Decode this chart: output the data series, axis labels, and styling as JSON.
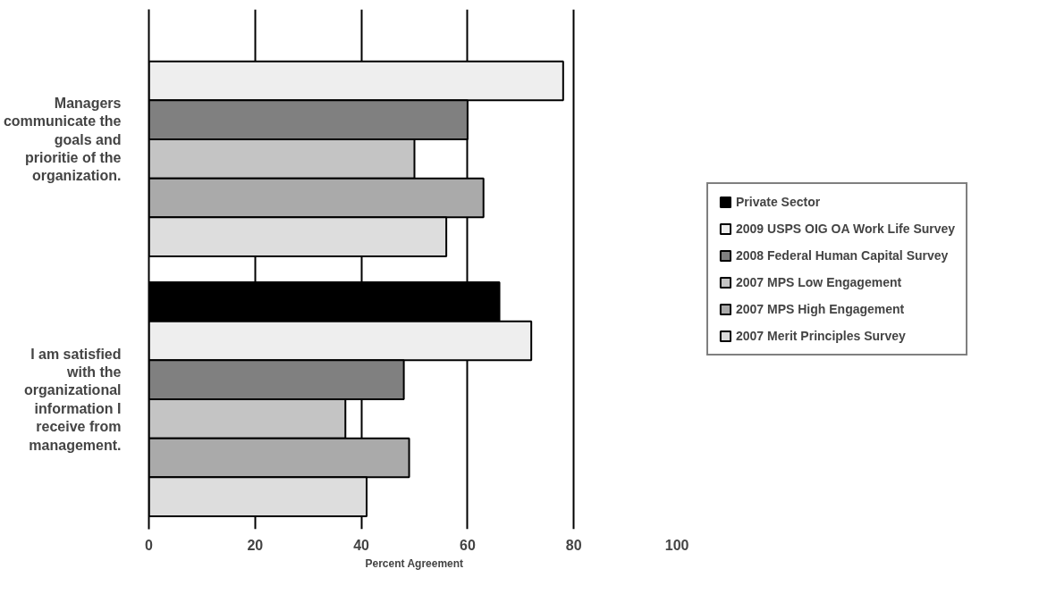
{
  "chart_data": {
    "type": "bar",
    "orientation": "horizontal",
    "xlabel": "Percent Agreement",
    "categories": [
      "Managers communicate the goals and prioritie of the organization.",
      "I am satisfied with the organizational information I receive from management."
    ],
    "series": [
      {
        "name": "Private Sector",
        "color": "#000000",
        "values": [
          null,
          66
        ]
      },
      {
        "name": "2009 USPS OIG OA Work Life Survey",
        "color": "#eeeeee",
        "values": [
          78,
          72
        ]
      },
      {
        "name": "2008 Federal Human Capital Survey",
        "color": "#808080",
        "values": [
          60,
          48
        ]
      },
      {
        "name": "2007 MPS Low Engagement",
        "color": "#c4c4c4",
        "values": [
          50,
          37
        ]
      },
      {
        "name": "2007 MPS High Engagement",
        "color": "#aaaaaa",
        "values": [
          63,
          49
        ]
      },
      {
        "name": "2007 Merit Principles Survey",
        "color": "#dddddd",
        "values": [
          56,
          41
        ]
      }
    ],
    "xlim": [
      0,
      100
    ],
    "xticks": [
      0,
      20,
      40,
      60,
      80,
      100
    ],
    "grid": "x",
    "legend": "right"
  }
}
